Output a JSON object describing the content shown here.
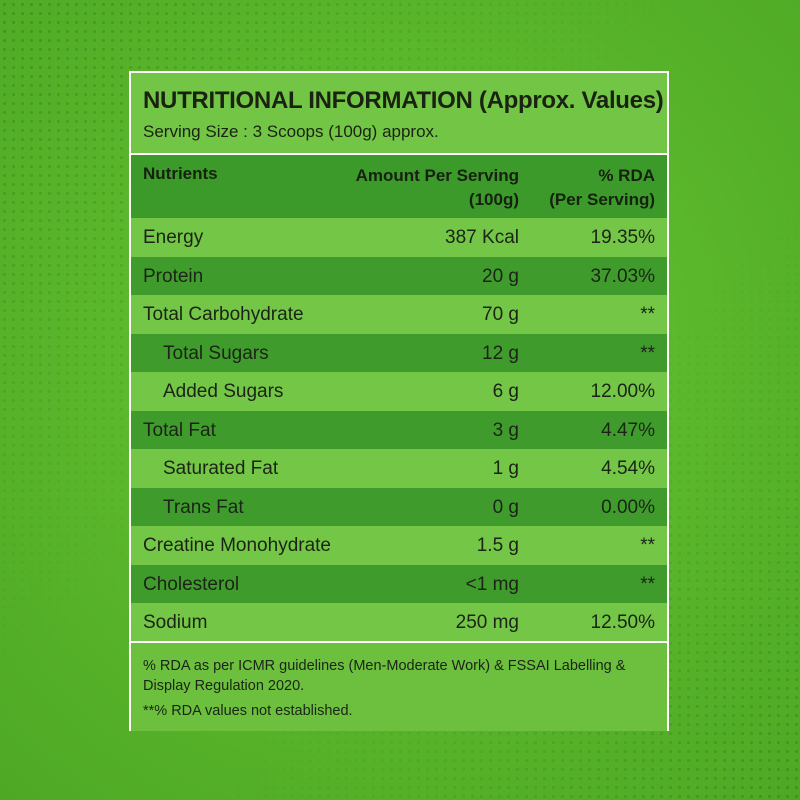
{
  "label": {
    "title": "NUTRITIONAL INFORMATION (Approx. Values)",
    "serving_size": "Serving Size : 3 Scoops (100g) approx.",
    "columns": {
      "nutrients": "Nutrients",
      "amount_line1": "Amount Per Serving",
      "amount_line2": "(100g)",
      "rda_line1": "% RDA",
      "rda_line2": "(Per Serving)"
    },
    "rows": [
      {
        "name": "Energy",
        "amount": "387 Kcal",
        "rda": "19.35%"
      },
      {
        "name": "Protein",
        "amount": "20 g",
        "rda": "37.03%"
      },
      {
        "name": "Total Carbohydrate",
        "amount": "70 g",
        "rda": "**"
      },
      {
        "name": "Total Sugars",
        "amount": "12 g",
        "rda": "**"
      },
      {
        "name": "Added Sugars",
        "amount": "6 g",
        "rda": "12.00%"
      },
      {
        "name": "Total Fat",
        "amount": "3 g",
        "rda": "4.47%"
      },
      {
        "name": "Saturated Fat",
        "amount": "1 g",
        "rda": "4.54%"
      },
      {
        "name": "Trans Fat",
        "amount": "0 g",
        "rda": "0.00%"
      },
      {
        "name": "Creatine Monohydrate",
        "amount": "1.5 g",
        "rda": "**"
      },
      {
        "name": "Cholesterol",
        "amount": "<1 mg",
        "rda": "**"
      },
      {
        "name": "Sodium",
        "amount": "250 mg",
        "rda": "12.50%"
      }
    ],
    "footnote_1": "% RDA as per ICMR guidelines (Men-Moderate Work) & FSSAI Labelling & Display Regulation 2020.",
    "footnote_2": "**% RDA values not established."
  },
  "colors": {
    "background": "#5cb82c",
    "row_light": "#74c646",
    "row_dark": "#3f9c2c",
    "border": "#ffffff"
  }
}
